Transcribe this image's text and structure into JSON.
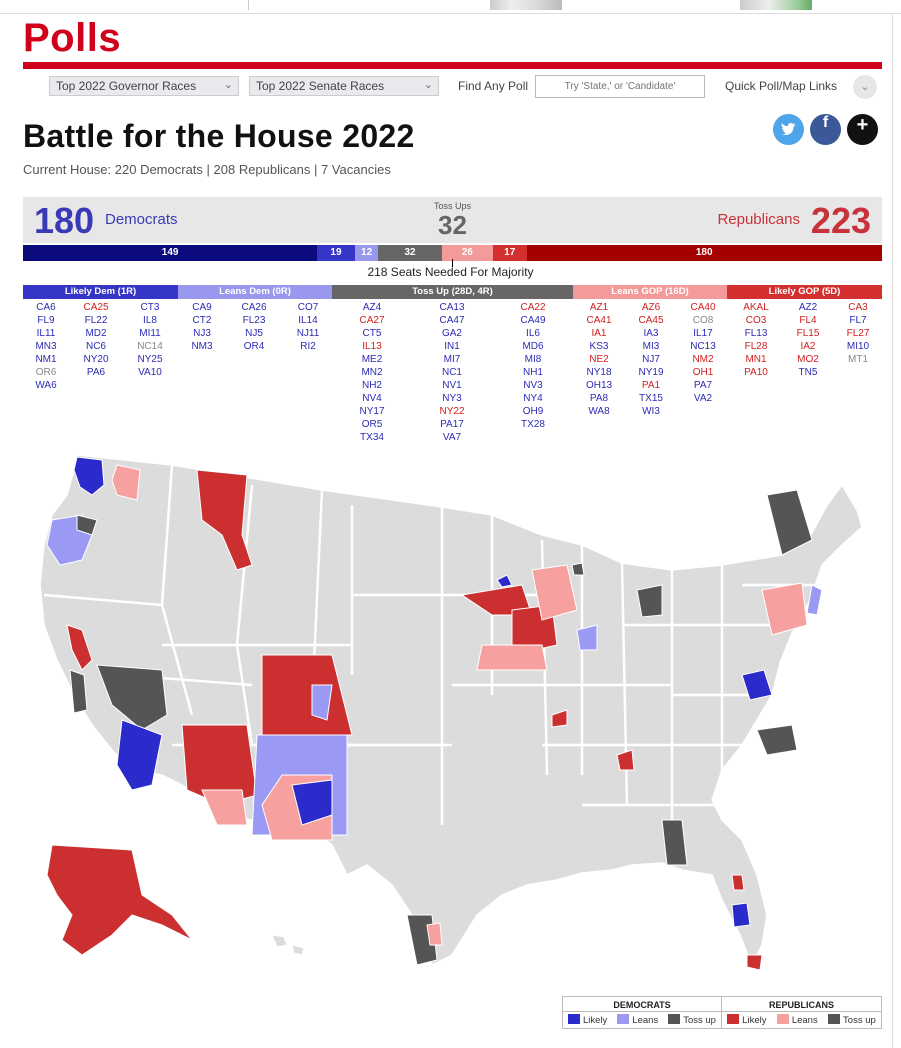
{
  "site": {
    "logo": "Polls"
  },
  "nav": {
    "governor_select": "Top 2022 Governor Races",
    "senate_select": "Top 2022 Senate Races",
    "find_label": "Find Any Poll",
    "search_placeholder": "Try 'State,' or 'Candidate'",
    "quick_links": "Quick Poll/Map Links"
  },
  "page": {
    "title": "Battle for the House 2022",
    "subtitle": "Current House: 220 Democrats | 208 Republicans | 7 Vacancies"
  },
  "social": {
    "twitter": "t",
    "facebook": "f",
    "more": "+"
  },
  "score": {
    "dem_count": "180",
    "dem_label": "Democrats",
    "tossup_label": "Toss Ups",
    "tossup_count": "32",
    "rep_label": "Republicans",
    "rep_count": "223"
  },
  "seat_bar": {
    "segments": [
      {
        "value": 149,
        "label": "149",
        "color": "#0b0b7e"
      },
      {
        "value": 19,
        "label": "19",
        "color": "#3535c8"
      },
      {
        "value": 12,
        "label": "12",
        "color": "#9898ee"
      },
      {
        "value": 32,
        "label": "32",
        "color": "#666666"
      },
      {
        "value": 26,
        "label": "26",
        "color": "#f49a9a"
      },
      {
        "value": 17,
        "label": "17",
        "color": "#d32f2f"
      },
      {
        "value": 180,
        "label": "180",
        "color": "#a50000"
      }
    ],
    "majority_label": "218 Seats Needed For Majority"
  },
  "categories": [
    {
      "label": "Likely Dem (1R)",
      "color": "#3535c8"
    },
    {
      "label": "Leans Dem (0R)",
      "color": "#9898ee"
    },
    {
      "label": "Toss Up (28D, 4R)",
      "color": "#666666"
    },
    {
      "label": "Leans GOP (16D)",
      "color": "#f49a9a"
    },
    {
      "label": "Likely GOP (5D)",
      "color": "#d32f2f"
    }
  ],
  "colors": {
    "dem": "#2b2bb5",
    "rep": "#d21e1e",
    "gray": "#888888"
  },
  "race_columns": [
    [
      [
        "CA6",
        "d"
      ],
      [
        "FL9",
        "d"
      ],
      [
        "IL11",
        "d"
      ],
      [
        "MN3",
        "d"
      ],
      [
        "NM1",
        "d"
      ],
      [
        "OR6",
        "g"
      ],
      [
        "WA6",
        "d"
      ]
    ],
    [
      [
        "CA25",
        "r"
      ],
      [
        "FL22",
        "d"
      ],
      [
        "MD2",
        "d"
      ],
      [
        "NC6",
        "d"
      ],
      [
        "NY20",
        "d"
      ],
      [
        "PA6",
        "d"
      ]
    ],
    [
      [
        "CT3",
        "d"
      ],
      [
        "IL8",
        "d"
      ],
      [
        "MI11",
        "d"
      ],
      [
        "NC14",
        "g"
      ],
      [
        "NY25",
        "d"
      ],
      [
        "VA10",
        "d"
      ]
    ],
    [
      [
        "CA9",
        "d"
      ],
      [
        "CT2",
        "d"
      ],
      [
        "NJ3",
        "d"
      ],
      [
        "NM3",
        "d"
      ]
    ],
    [
      [
        "CA26",
        "d"
      ],
      [
        "FL23",
        "d"
      ],
      [
        "NJ5",
        "d"
      ],
      [
        "OR4",
        "d"
      ]
    ],
    [
      [
        "CO7",
        "d"
      ],
      [
        "IL14",
        "d"
      ],
      [
        "NJ11",
        "d"
      ],
      [
        "RI2",
        "d"
      ]
    ],
    [
      [
        "AZ4",
        "d"
      ],
      [
        "CA27",
        "r"
      ],
      [
        "CT5",
        "d"
      ],
      [
        "IL13",
        "r"
      ],
      [
        "ME2",
        "d"
      ],
      [
        "MN2",
        "d"
      ],
      [
        "NH2",
        "d"
      ],
      [
        "NV4",
        "d"
      ],
      [
        "NY17",
        "d"
      ],
      [
        "OR5",
        "d"
      ],
      [
        "TX34",
        "d"
      ]
    ],
    [
      [
        "CA13",
        "d"
      ],
      [
        "CA47",
        "d"
      ],
      [
        "GA2",
        "d"
      ],
      [
        "IN1",
        "d"
      ],
      [
        "MI7",
        "d"
      ],
      [
        "NC1",
        "d"
      ],
      [
        "NV1",
        "d"
      ],
      [
        "NY3",
        "d"
      ],
      [
        "NY22",
        "r"
      ],
      [
        "PA17",
        "d"
      ],
      [
        "VA7",
        "d"
      ]
    ],
    [
      [
        "CA22",
        "r"
      ],
      [
        "CA49",
        "d"
      ],
      [
        "IL6",
        "d"
      ],
      [
        "MD6",
        "d"
      ],
      [
        "MI8",
        "d"
      ],
      [
        "NH1",
        "d"
      ],
      [
        "NV3",
        "d"
      ],
      [
        "NY4",
        "d"
      ],
      [
        "OH9",
        "d"
      ],
      [
        "TX28",
        "d"
      ]
    ],
    [
      [
        "AZ1",
        "r"
      ],
      [
        "CA41",
        "r"
      ],
      [
        "IA1",
        "r"
      ],
      [
        "KS3",
        "d"
      ],
      [
        "NE2",
        "r"
      ],
      [
        "NY18",
        "d"
      ],
      [
        "OH13",
        "d"
      ],
      [
        "PA8",
        "d"
      ],
      [
        "WA8",
        "d"
      ]
    ],
    [
      [
        "AZ6",
        "r"
      ],
      [
        "CA45",
        "r"
      ],
      [
        "IA3",
        "d"
      ],
      [
        "MI3",
        "d"
      ],
      [
        "NJ7",
        "d"
      ],
      [
        "NY19",
        "d"
      ],
      [
        "PA1",
        "r"
      ],
      [
        "TX15",
        "d"
      ],
      [
        "WI3",
        "d"
      ]
    ],
    [
      [
        "CA40",
        "r"
      ],
      [
        "CO8",
        "g"
      ],
      [
        "IL17",
        "d"
      ],
      [
        "NC13",
        "d"
      ],
      [
        "NM2",
        "r"
      ],
      [
        "OH1",
        "r"
      ],
      [
        "PA7",
        "d"
      ],
      [
        "VA2",
        "d"
      ]
    ],
    [
      [
        "AKAL",
        "r"
      ],
      [
        "CO3",
        "r"
      ],
      [
        "FL13",
        "d"
      ],
      [
        "FL28",
        "r"
      ],
      [
        "MN1",
        "r"
      ],
      [
        "PA10",
        "r"
      ]
    ],
    [
      [
        "AZ2",
        "d"
      ],
      [
        "FL4",
        "r"
      ],
      [
        "FL15",
        "r"
      ],
      [
        "IA2",
        "r"
      ],
      [
        "MO2",
        "r"
      ],
      [
        "TN5",
        "d"
      ]
    ],
    [
      [
        "CA3",
        "r"
      ],
      [
        "FL7",
        "d"
      ],
      [
        "FL27",
        "r"
      ],
      [
        "MI10",
        "d"
      ],
      [
        "MT1",
        "g"
      ]
    ]
  ],
  "map_legend": {
    "dem_header": "DEMOCRATS",
    "rep_header": "REPUBLICANS",
    "likely": "Likely",
    "leans": "Leans",
    "tossup": "Toss up",
    "dem_likely_color": "#2b2bcc",
    "dem_leans_color": "#9a9af5",
    "tossup_color": "#555555",
    "rep_likely_color": "#cc2f2f",
    "rep_leans_color": "#f6a0a0"
  }
}
